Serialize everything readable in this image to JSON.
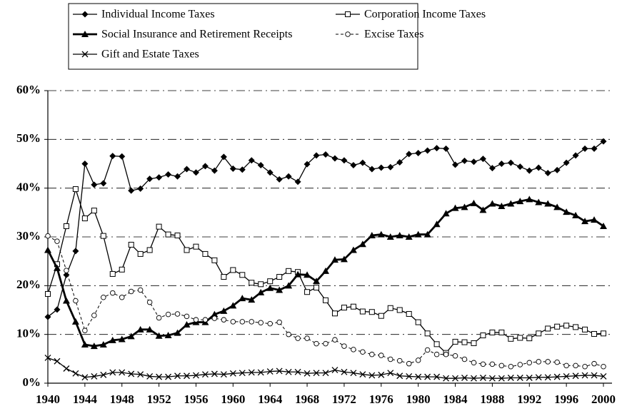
{
  "chart_data": {
    "type": "line",
    "x": [
      1940,
      1941,
      1942,
      1943,
      1944,
      1945,
      1946,
      1947,
      1948,
      1949,
      1950,
      1951,
      1952,
      1953,
      1954,
      1955,
      1956,
      1957,
      1958,
      1959,
      1960,
      1961,
      1962,
      1963,
      1964,
      1965,
      1966,
      1967,
      1968,
      1969,
      1970,
      1971,
      1972,
      1973,
      1974,
      1975,
      1976,
      1977,
      1978,
      1979,
      1980,
      1981,
      1982,
      1983,
      1984,
      1985,
      1986,
      1987,
      1988,
      1989,
      1990,
      1991,
      1992,
      1993,
      1994,
      1995,
      1996,
      1997,
      1998,
      1999,
      2000
    ],
    "series": [
      {
        "name": "Individual Income Taxes",
        "color": "#000000",
        "marker": "diamond",
        "values": [
          13.6,
          15.1,
          22.2,
          27.1,
          45.0,
          40.7,
          41.0,
          46.6,
          46.5,
          39.5,
          39.9,
          41.9,
          42.2,
          42.8,
          42.4,
          43.9,
          43.2,
          44.5,
          43.6,
          46.4,
          44.0,
          43.8,
          45.7,
          44.7,
          43.2,
          41.8,
          42.4,
          41.3,
          44.9,
          46.7,
          46.9,
          46.1,
          45.7,
          44.7,
          45.2,
          43.9,
          44.2,
          44.3,
          45.3,
          47.0,
          47.2,
          47.7,
          48.2,
          48.1,
          44.8,
          45.6,
          45.4,
          46.0,
          44.1,
          45.0,
          45.2,
          44.4,
          43.6,
          44.2,
          43.1,
          43.7,
          45.2,
          46.7,
          48.1,
          48.1,
          49.6
        ]
      },
      {
        "name": "Corporation Income Taxes",
        "color": "#000000",
        "marker": "square",
        "values": [
          18.3,
          24.4,
          32.2,
          39.8,
          33.8,
          35.4,
          30.2,
          22.4,
          23.3,
          28.4,
          26.5,
          27.3,
          32.1,
          30.5,
          30.3,
          27.3,
          28.0,
          26.5,
          25.2,
          21.8,
          23.2,
          22.2,
          20.6,
          20.3,
          20.9,
          21.8,
          23.0,
          22.8,
          18.7,
          19.6,
          17.0,
          14.3,
          15.5,
          15.7,
          14.7,
          14.6,
          13.8,
          15.4,
          15.0,
          14.2,
          12.5,
          10.2,
          8.0,
          6.2,
          8.5,
          8.4,
          8.2,
          9.8,
          10.4,
          10.4,
          9.1,
          9.3,
          9.2,
          10.2,
          11.2,
          11.6,
          11.8,
          11.5,
          11.0,
          10.1,
          10.2
        ]
      },
      {
        "name": "Social Insurance and Retirement Receipts",
        "color": "#000000",
        "marker": "triangle",
        "values": [
          27.3,
          23.6,
          16.9,
          12.6,
          7.9,
          7.6,
          7.9,
          8.8,
          9.0,
          9.6,
          11.0,
          11.0,
          9.7,
          9.8,
          10.3,
          12.0,
          12.5,
          12.5,
          14.1,
          14.8,
          15.9,
          17.4,
          17.1,
          18.6,
          19.5,
          19.1,
          20.0,
          22.3,
          22.2,
          20.9,
          23.0,
          25.3,
          25.4,
          27.3,
          28.5,
          30.3,
          30.5,
          30.0,
          30.3,
          30.0,
          30.5,
          30.5,
          32.6,
          34.8,
          35.9,
          36.1,
          36.9,
          35.5,
          36.8,
          36.3,
          36.8,
          37.3,
          37.7,
          37.1,
          36.8,
          36.1,
          35.1,
          34.4,
          33.2,
          33.5,
          32.2
        ]
      },
      {
        "name": "Excise Taxes",
        "color": "#000000",
        "marker": "circle",
        "dashed": true,
        "values": [
          30.2,
          29.1,
          23.1,
          16.9,
          10.8,
          13.9,
          17.6,
          18.5,
          17.6,
          18.8,
          19.1,
          16.6,
          13.4,
          14.1,
          14.2,
          13.7,
          13.0,
          13.0,
          13.3,
          13.0,
          12.6,
          12.6,
          12.6,
          12.4,
          12.2,
          12.5,
          10.0,
          9.2,
          9.2,
          8.1,
          8.1,
          8.9,
          7.6,
          6.9,
          6.4,
          5.9,
          5.7,
          4.9,
          4.6,
          4.0,
          4.7,
          6.8,
          5.9,
          5.9,
          5.6,
          4.9,
          4.2,
          3.9,
          3.9,
          3.6,
          3.4,
          3.8,
          4.2,
          4.4,
          4.4,
          4.3,
          3.6,
          3.6,
          3.4,
          4.0,
          3.4
        ]
      },
      {
        "name": "Gift and Estate Taxes",
        "color": "#000000",
        "marker": "x",
        "values": [
          5.2,
          4.5,
          3.0,
          2.0,
          1.2,
          1.4,
          1.7,
          2.2,
          2.2,
          1.9,
          1.8,
          1.4,
          1.3,
          1.3,
          1.5,
          1.5,
          1.6,
          1.8,
          1.9,
          1.8,
          2.0,
          2.1,
          2.2,
          2.2,
          2.4,
          2.5,
          2.3,
          2.3,
          2.0,
          2.1,
          2.1,
          2.7,
          2.3,
          2.1,
          1.8,
          1.6,
          1.7,
          2.1,
          1.5,
          1.4,
          1.3,
          1.3,
          1.3,
          1.0,
          1.0,
          1.1,
          1.0,
          1.1,
          1.0,
          1.0,
          1.1,
          1.1,
          1.1,
          1.2,
          1.2,
          1.3,
          1.4,
          1.5,
          1.6,
          1.6,
          1.4
        ]
      }
    ],
    "xlim": [
      1940,
      2000
    ],
    "xticks": [
      1940,
      1944,
      1948,
      1952,
      1956,
      1960,
      1964,
      1968,
      1972,
      1976,
      1980,
      1984,
      1988,
      1992,
      1996,
      2000
    ],
    "ylim": [
      0,
      60
    ],
    "yticks": [
      {
        "value": 0,
        "label": "0%"
      },
      {
        "value": 10,
        "label": "10%"
      },
      {
        "value": 20,
        "label": "20%"
      },
      {
        "value": 30,
        "label": "30%"
      },
      {
        "value": 40,
        "label": "40%"
      },
      {
        "value": 50,
        "label": "50%"
      },
      {
        "value": 60,
        "label": "60%"
      }
    ],
    "grid": true,
    "legend": "top"
  }
}
